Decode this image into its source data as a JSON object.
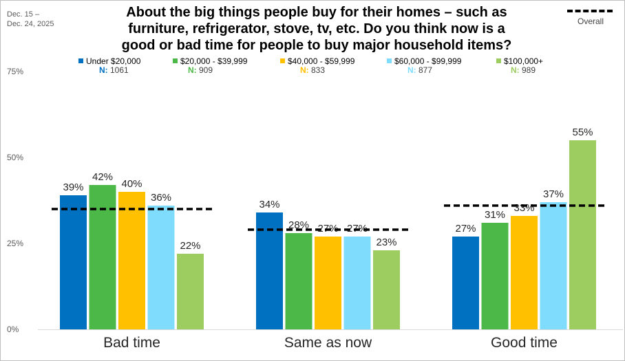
{
  "date_range": [
    "Dec. 15 –",
    "Dec. 24, 2025"
  ],
  "title_lines": [
    "About the big things people buy for their homes – such as",
    "furniture, refrigerator, stove, tv, etc. Do you think now is a",
    "good or bad time for people to buy major household items?"
  ],
  "overall_legend_label": "Overall",
  "chart_data": {
    "type": "bar",
    "categories": [
      "Bad time",
      "Same as now",
      "Good time"
    ],
    "series": [
      {
        "name": "Under $20,000",
        "n": "1061",
        "color": "#0070c0",
        "values": [
          39,
          34,
          27
        ],
        "labels": [
          "39%",
          "34%",
          "27%"
        ]
      },
      {
        "name": "$20,000 - $39,999",
        "n": "909",
        "color": "#4cb848",
        "values": [
          42,
          28,
          31
        ],
        "labels": [
          "42%",
          "28%",
          "31%"
        ]
      },
      {
        "name": "$40,000 - $59,999",
        "n": "833",
        "color": "#ffc000",
        "values": [
          40,
          27,
          33
        ],
        "labels": [
          "40%",
          "27%",
          "33%"
        ]
      },
      {
        "name": "$60,000 - $99,999",
        "n": "877",
        "color": "#7fdcfc",
        "values": [
          36,
          27,
          37
        ],
        "labels": [
          "36%",
          "27%",
          "37%"
        ]
      },
      {
        "name": "$100,000+",
        "n": "989",
        "color": "#9dcd60",
        "values": [
          22,
          23,
          55
        ],
        "labels": [
          "22%",
          "23%",
          "55%"
        ]
      }
    ],
    "overall": {
      "name": "Overall",
      "values": [
        35,
        29,
        36
      ],
      "style": "black-dashed"
    },
    "n_prefix": "N:",
    "yticks": [
      0,
      25,
      50,
      75
    ],
    "ytick_labels": [
      "0%",
      "25%",
      "50%",
      "75%"
    ],
    "ylim": [
      0,
      75
    ],
    "grid": false,
    "legend_placement": "top"
  }
}
